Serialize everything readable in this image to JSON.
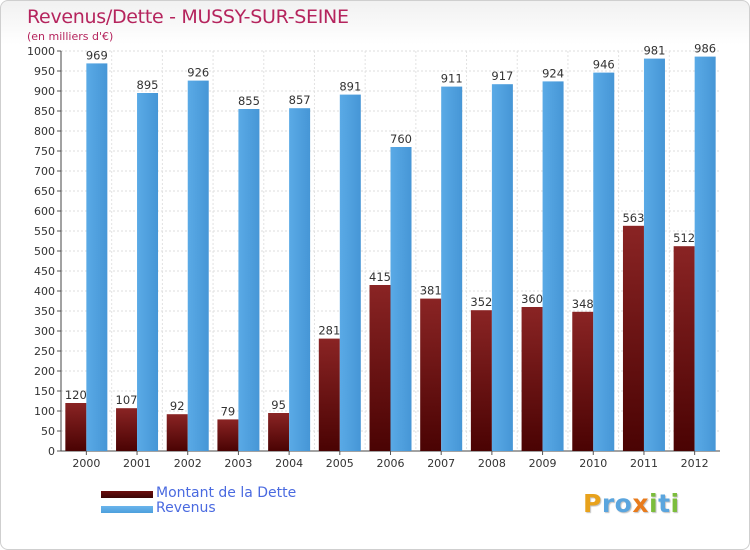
{
  "title": "Revenus/Dette - MUSSY-SUR-SEINE",
  "unit_label": "(en milliers d'€)",
  "brand": {
    "text": "Proxiti",
    "letters": [
      {
        "ch": "P",
        "color": "#e8a21c"
      },
      {
        "ch": "r",
        "color": "#5aa5de"
      },
      {
        "ch": "o",
        "color": "#5aa5de"
      },
      {
        "ch": "x",
        "color": "#e87b1c"
      },
      {
        "ch": "i",
        "color": "#7cbd3c"
      },
      {
        "ch": "t",
        "color": "#5aa5de"
      },
      {
        "ch": "i",
        "color": "#7cbd3c"
      }
    ]
  },
  "chart_data": {
    "type": "bar",
    "title": "Revenus/Dette - MUSSY-SUR-SEINE",
    "ylabel": "(en milliers d'€)",
    "xlabel": "",
    "categories": [
      "2000",
      "2001",
      "2002",
      "2003",
      "2004",
      "2005",
      "2006",
      "2007",
      "2008",
      "2009",
      "2010",
      "2011",
      "2012"
    ],
    "series": [
      {
        "name": "Montant de la Dette",
        "color": "#6b0d0d",
        "values": [
          120,
          107,
          92,
          79,
          95,
          281,
          415,
          381,
          352,
          360,
          348,
          563,
          512
        ]
      },
      {
        "name": "Revenus",
        "color": "#4d9fdc",
        "values": [
          969,
          895,
          926,
          855,
          857,
          891,
          760,
          911,
          917,
          924,
          946,
          981,
          986
        ]
      }
    ],
    "ylim": [
      0,
      1000
    ],
    "ytick_step": 50,
    "grid": true,
    "data_labels": true,
    "legend_position": "bottom-left"
  }
}
